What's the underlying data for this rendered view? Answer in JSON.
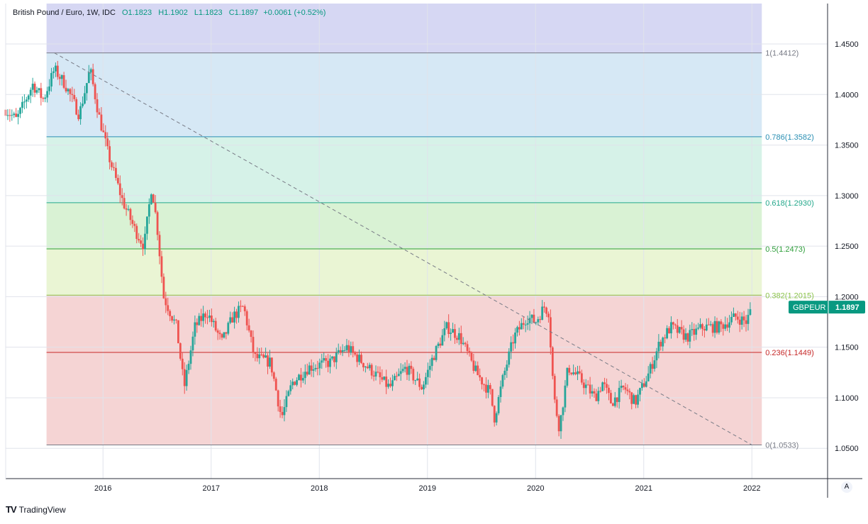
{
  "legend": {
    "title": "British Pound / Euro, 1W, IDC",
    "open": "O1.1823",
    "high": "H1.1902",
    "low": "L1.1823",
    "close": "C1.1897",
    "change": "+0.0061 (+0.52%)"
  },
  "branding": {
    "logo_text": "TradingView",
    "auto_button": "A"
  },
  "price_tag": {
    "symbol": "GBPEUR",
    "value": "1.1897",
    "color": "#089981"
  },
  "chart_data": {
    "type": "candlestick",
    "title": "British Pound / Euro, 1W, IDC",
    "x_range": [
      2015.1,
      2022.7
    ],
    "y_range": [
      1.02,
      1.49
    ],
    "y_ticks": [
      "1.4500",
      "1.4000",
      "1.3500",
      "1.3000",
      "1.2500",
      "1.2000",
      "1.1500",
      "1.1000",
      "1.0500"
    ],
    "x_ticks": [
      "2016",
      "2017",
      "2018",
      "2019",
      "2020",
      "2021",
      "2022"
    ],
    "grid": true,
    "fibonacci": {
      "start": {
        "date": 2015.55,
        "price": 1.4412
      },
      "end": {
        "date": 2022.0,
        "price": 1.0533
      },
      "levels": [
        {
          "label": "1(1.4412)",
          "price": 1.4412,
          "line_color": "#787b86",
          "fill": "#e6e6e6"
        },
        {
          "label": "0.786(1.3582)",
          "price": 1.3582,
          "line_color": "#2a8fb3",
          "fill": "#d6e8f5"
        },
        {
          "label": "0.618(1.2930)",
          "price": 1.293,
          "line_color": "#24a88b",
          "fill": "#d6f2e8"
        },
        {
          "label": "0.5(1.2473)",
          "price": 1.2473,
          "line_color": "#2e9e3a",
          "fill": "#d9f2d4"
        },
        {
          "label": "0.382(1.2015)",
          "price": 1.2015,
          "line_color": "#8bc34a",
          "fill": "#eaf5d4"
        },
        {
          "label": "0.236(1.1449)",
          "price": 1.1449,
          "line_color": "#c62828",
          "fill": "#f5d4d4"
        },
        {
          "label": "0(1.0533)",
          "price": 1.0533,
          "line_color": "#787b86",
          "fill": "#f5d4d4"
        }
      ],
      "extension_fill": "#d6d7f3"
    },
    "up_color": "#26a69a",
    "down_color": "#ef5350",
    "anchors": [
      [
        2015.1,
        1.385
      ],
      [
        2015.2,
        1.375
      ],
      [
        2015.35,
        1.41
      ],
      [
        2015.45,
        1.395
      ],
      [
        2015.55,
        1.425
      ],
      [
        2015.65,
        1.41
      ],
      [
        2015.78,
        1.38
      ],
      [
        2015.88,
        1.425
      ],
      [
        2015.96,
        1.38
      ],
      [
        2016.05,
        1.34
      ],
      [
        2016.18,
        1.295
      ],
      [
        2016.3,
        1.265
      ],
      [
        2016.38,
        1.25
      ],
      [
        2016.45,
        1.31
      ],
      [
        2016.5,
        1.27
      ],
      [
        2016.56,
        1.2
      ],
      [
        2016.68,
        1.17
      ],
      [
        2016.75,
        1.11
      ],
      [
        2016.85,
        1.17
      ],
      [
        2016.96,
        1.185
      ],
      [
        2017.1,
        1.155
      ],
      [
        2017.2,
        1.18
      ],
      [
        2017.3,
        1.19
      ],
      [
        2017.4,
        1.14
      ],
      [
        2017.55,
        1.135
      ],
      [
        2017.65,
        1.08
      ],
      [
        2017.75,
        1.115
      ],
      [
        2017.9,
        1.13
      ],
      [
        2018.1,
        1.135
      ],
      [
        2018.25,
        1.15
      ],
      [
        2018.45,
        1.13
      ],
      [
        2018.65,
        1.11
      ],
      [
        2018.8,
        1.13
      ],
      [
        2018.95,
        1.11
      ],
      [
        2019.05,
        1.14
      ],
      [
        2019.18,
        1.17
      ],
      [
        2019.3,
        1.16
      ],
      [
        2019.45,
        1.125
      ],
      [
        2019.58,
        1.105
      ],
      [
        2019.62,
        1.08
      ],
      [
        2019.7,
        1.12
      ],
      [
        2019.8,
        1.16
      ],
      [
        2019.92,
        1.18
      ],
      [
        2020.0,
        1.175
      ],
      [
        2020.08,
        1.19
      ],
      [
        2020.12,
        1.185
      ],
      [
        2020.17,
        1.1
      ],
      [
        2020.22,
        1.07
      ],
      [
        2020.3,
        1.13
      ],
      [
        2020.4,
        1.12
      ],
      [
        2020.55,
        1.1
      ],
      [
        2020.62,
        1.115
      ],
      [
        2020.7,
        1.095
      ],
      [
        2020.82,
        1.11
      ],
      [
        2020.92,
        1.095
      ],
      [
        2021.05,
        1.125
      ],
      [
        2021.15,
        1.155
      ],
      [
        2021.25,
        1.17
      ],
      [
        2021.4,
        1.16
      ],
      [
        2021.55,
        1.17
      ],
      [
        2021.7,
        1.17
      ],
      [
        2021.85,
        1.18
      ],
      [
        2021.95,
        1.175
      ],
      [
        2022.0,
        1.1897
      ]
    ]
  }
}
